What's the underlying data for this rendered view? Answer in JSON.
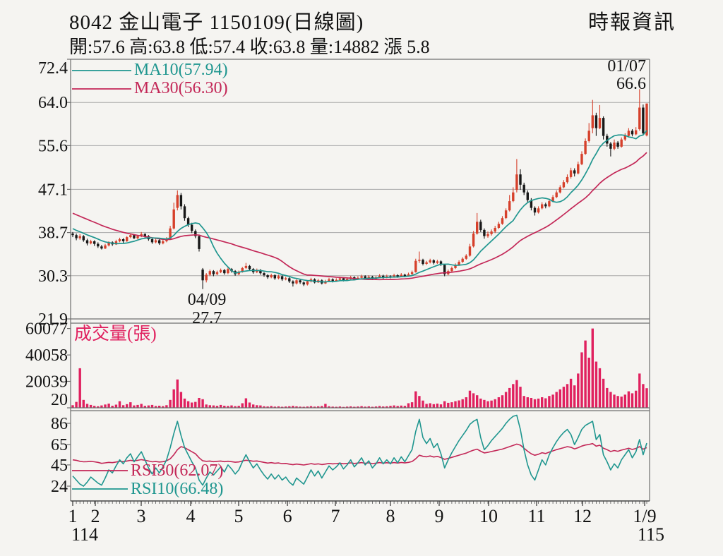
{
  "header": {
    "title": "8042 金山電子 1150109(日線圖)",
    "source": "時報資訊",
    "info": "開:57.6 高:63.8 低:57.4 收:63.8 量:14882 漲 5.8"
  },
  "colors": {
    "up": "#d6402b",
    "down": "#181818",
    "ma10": "#1f968f",
    "ma30": "#c32757",
    "volume": "#e0215f",
    "grid": "#a8a8a8",
    "axis": "#6f6f6f",
    "text": "#121212",
    "bg": "#f5f4f1"
  },
  "chart_data": {
    "type": "candlestick",
    "title": "8042 金山電子 1150109(日線圖)",
    "panels": [
      "price_with_ma",
      "volume",
      "rsi"
    ],
    "price_axis": {
      "min": 21.9,
      "max": 72.4,
      "ticks": [
        72.4,
        64.0,
        55.6,
        47.1,
        38.7,
        30.3,
        21.9
      ]
    },
    "volume_axis": {
      "max": 62000,
      "ticks": [
        60077,
        40058,
        20039,
        20
      ]
    },
    "rsi_axis": {
      "ticks": [
        86,
        65,
        45,
        24
      ]
    },
    "months": [
      {
        "label": "1",
        "f": 0.0
      },
      {
        "label": "2",
        "f": 0.0394
      },
      {
        "label": "3",
        "f": 0.1193
      },
      {
        "label": "4",
        "f": 0.2054
      },
      {
        "label": "5",
        "f": 0.2891
      },
      {
        "label": "6",
        "f": 0.374
      },
      {
        "label": "7",
        "f": 0.4576
      },
      {
        "label": "8",
        "f": 0.5535
      },
      {
        "label": "9",
        "f": 0.6384
      },
      {
        "label": "10",
        "f": 0.7245
      },
      {
        "label": "11",
        "f": 0.8081
      },
      {
        "label": "12",
        "f": 0.8881
      },
      {
        "label": "1/9",
        "f": 0.9963
      }
    ],
    "year_left": "114",
    "year_right": "115",
    "legend": {
      "ma10": "MA10(57.94)",
      "ma30": "MA30(56.30)",
      "volume_title": "成交量(張)",
      "rsi30": "RSI30(62.07)",
      "rsi10": "RSI10(66.48)"
    },
    "annotations": {
      "high": {
        "date": "01/07",
        "value": "66.6",
        "day": 157
      },
      "low": {
        "date": "04/09",
        "value": "27.7",
        "day": 36
      }
    },
    "pre_closes": [
      47.0,
      46.5,
      46.8,
      46.0,
      45.5,
      45.8,
      45.0,
      44.6,
      44.9,
      44.2,
      43.8,
      44.0,
      43.4,
      43.0,
      43.3,
      42.6,
      42.2,
      42.5,
      41.8,
      41.4,
      41.7,
      41.0,
      40.6,
      40.2,
      39.8,
      39.5,
      39.2,
      38.9,
      38.7,
      38.5
    ],
    "candles": [
      [
        38.5,
        38.8,
        37.8,
        38.2
      ],
      [
        38.2,
        38.5,
        37.2,
        37.6
      ],
      [
        37.6,
        38.4,
        37.3,
        38.0
      ],
      [
        38.0,
        38.2,
        36.9,
        37.2
      ],
      [
        37.2,
        37.5,
        36.2,
        36.6
      ],
      [
        36.6,
        37.3,
        36.4,
        37.0
      ],
      [
        37.0,
        37.2,
        36.1,
        36.5
      ],
      [
        36.5,
        36.8,
        35.7,
        36.0
      ],
      [
        36.0,
        36.3,
        35.4,
        35.6
      ],
      [
        35.6,
        36.5,
        35.5,
        36.2
      ],
      [
        36.2,
        37.0,
        36.0,
        36.8
      ],
      [
        36.8,
        37.0,
        36.1,
        36.4
      ],
      [
        36.4,
        37.3,
        36.3,
        37.0
      ],
      [
        37.0,
        37.7,
        36.8,
        37.4
      ],
      [
        37.4,
        37.6,
        36.7,
        37.0
      ],
      [
        37.0,
        38.0,
        36.9,
        37.8
      ],
      [
        37.8,
        38.5,
        37.6,
        38.2
      ],
      [
        38.2,
        38.4,
        37.4,
        37.6
      ],
      [
        37.6,
        38.2,
        37.4,
        38.0
      ],
      [
        38.0,
        38.8,
        37.8,
        38.4
      ],
      [
        38.4,
        38.6,
        37.7,
        38.0
      ],
      [
        38.0,
        38.2,
        37.1,
        37.4
      ],
      [
        37.4,
        37.6,
        36.5,
        36.8
      ],
      [
        36.8,
        37.5,
        36.6,
        37.2
      ],
      [
        37.2,
        37.4,
        36.3,
        36.6
      ],
      [
        36.6,
        37.3,
        36.4,
        37.0
      ],
      [
        37.0,
        37.8,
        36.8,
        37.5
      ],
      [
        37.5,
        40.0,
        37.4,
        39.5
      ],
      [
        39.5,
        44.5,
        39.3,
        43.2
      ],
      [
        43.5,
        46.9,
        43.0,
        46.0
      ],
      [
        46.0,
        46.4,
        43.2,
        43.8
      ],
      [
        43.8,
        44.2,
        41.0,
        41.5
      ],
      [
        41.5,
        41.8,
        39.8,
        40.2
      ],
      [
        40.2,
        40.6,
        38.6,
        39.0
      ],
      [
        39.0,
        39.3,
        37.6,
        38.0
      ],
      [
        38.0,
        38.2,
        35.0,
        35.5
      ],
      [
        31.5,
        31.8,
        27.7,
        29.4
      ],
      [
        29.4,
        30.8,
        29.0,
        30.5
      ],
      [
        30.5,
        31.5,
        30.2,
        31.2
      ],
      [
        31.2,
        31.4,
        30.2,
        30.6
      ],
      [
        30.6,
        31.3,
        30.4,
        31.0
      ],
      [
        31.0,
        31.7,
        30.8,
        31.4
      ],
      [
        31.4,
        31.6,
        30.5,
        30.8
      ],
      [
        30.8,
        31.9,
        30.6,
        31.6
      ],
      [
        31.6,
        31.8,
        30.9,
        31.2
      ],
      [
        31.2,
        31.4,
        30.3,
        30.6
      ],
      [
        30.6,
        31.3,
        30.4,
        31.0
      ],
      [
        31.0,
        32.0,
        30.9,
        31.8
      ],
      [
        31.8,
        32.8,
        31.6,
        32.2
      ],
      [
        32.2,
        32.4,
        31.3,
        31.6
      ],
      [
        31.6,
        31.8,
        30.7,
        31.0
      ],
      [
        31.0,
        31.7,
        30.8,
        31.4
      ],
      [
        31.4,
        31.6,
        30.5,
        30.8
      ],
      [
        30.8,
        31.0,
        30.1,
        30.4
      ],
      [
        30.4,
        30.6,
        29.7,
        30.0
      ],
      [
        30.0,
        30.7,
        29.8,
        30.4
      ],
      [
        30.4,
        30.6,
        29.5,
        29.8
      ],
      [
        29.8,
        30.5,
        29.6,
        30.2
      ],
      [
        30.2,
        30.4,
        29.3,
        29.6
      ],
      [
        29.6,
        30.1,
        29.4,
        29.8
      ],
      [
        29.8,
        30.0,
        28.9,
        29.2
      ],
      [
        29.2,
        29.4,
        28.2,
        28.8
      ],
      [
        28.8,
        29.6,
        28.6,
        29.4
      ],
      [
        29.4,
        29.6,
        28.7,
        29.0
      ],
      [
        29.0,
        29.2,
        28.3,
        28.6
      ],
      [
        28.6,
        29.4,
        28.4,
        29.2
      ],
      [
        29.2,
        29.9,
        29.0,
        29.6
      ],
      [
        29.6,
        29.8,
        28.8,
        29.0
      ],
      [
        29.0,
        29.7,
        28.9,
        29.4
      ],
      [
        29.4,
        29.6,
        28.6,
        28.8
      ],
      [
        28.8,
        29.5,
        28.7,
        29.2
      ],
      [
        29.2,
        29.9,
        29.1,
        29.6
      ],
      [
        29.6,
        29.8,
        29.0,
        29.3
      ],
      [
        29.3,
        29.8,
        29.1,
        29.5
      ],
      [
        29.5,
        30.1,
        29.3,
        29.8
      ],
      [
        29.8,
        30.0,
        29.2,
        29.4
      ],
      [
        29.4,
        30.0,
        29.3,
        29.7
      ],
      [
        29.7,
        30.3,
        29.5,
        30.0
      ],
      [
        30.0,
        30.2,
        29.4,
        29.6
      ],
      [
        29.6,
        30.2,
        29.5,
        29.9
      ],
      [
        29.9,
        30.5,
        29.7,
        30.2
      ],
      [
        30.2,
        30.4,
        29.6,
        29.8
      ],
      [
        29.8,
        30.4,
        29.7,
        30.1
      ],
      [
        30.1,
        30.3,
        29.5,
        29.7
      ],
      [
        29.7,
        30.3,
        29.6,
        30.0
      ],
      [
        30.0,
        30.6,
        29.9,
        30.3
      ],
      [
        30.3,
        30.5,
        29.7,
        29.9
      ],
      [
        29.9,
        30.5,
        29.8,
        30.2
      ],
      [
        30.2,
        30.4,
        29.8,
        30.0
      ],
      [
        30.0,
        30.7,
        29.9,
        30.4
      ],
      [
        30.4,
        30.6,
        29.9,
        30.1
      ],
      [
        30.1,
        30.8,
        30.0,
        30.5
      ],
      [
        30.5,
        30.7,
        30.0,
        30.2
      ],
      [
        30.2,
        30.9,
        30.1,
        30.6
      ],
      [
        30.6,
        31.3,
        30.5,
        31.0
      ],
      [
        31.0,
        33.6,
        30.9,
        33.2
      ],
      [
        33.2,
        35.0,
        32.8,
        33.4
      ],
      [
        33.4,
        33.6,
        32.3,
        32.6
      ],
      [
        32.6,
        33.2,
        32.4,
        32.9
      ],
      [
        32.9,
        33.6,
        32.7,
        33.3
      ],
      [
        33.3,
        33.5,
        32.5,
        32.8
      ],
      [
        32.8,
        33.4,
        32.6,
        33.1
      ],
      [
        33.1,
        33.3,
        32.2,
        32.5
      ],
      [
        32.4,
        32.6,
        30.2,
        30.6
      ],
      [
        30.6,
        31.5,
        30.4,
        31.2
      ],
      [
        31.2,
        32.1,
        31.0,
        31.8
      ],
      [
        31.8,
        32.7,
        31.6,
        32.4
      ],
      [
        32.4,
        33.3,
        32.2,
        33.0
      ],
      [
        33.0,
        33.9,
        32.8,
        33.6
      ],
      [
        33.6,
        34.5,
        33.4,
        34.2
      ],
      [
        34.2,
        36.5,
        34.0,
        36.0
      ],
      [
        36.0,
        39.0,
        35.8,
        38.5
      ],
      [
        38.5,
        42.5,
        38.3,
        40.8
      ],
      [
        40.8,
        41.2,
        38.8,
        39.2
      ],
      [
        39.2,
        39.5,
        37.5,
        38.0
      ],
      [
        38.0,
        38.9,
        37.7,
        38.4
      ],
      [
        38.4,
        39.3,
        38.1,
        38.9
      ],
      [
        38.9,
        40.0,
        38.6,
        39.6
      ],
      [
        39.6,
        40.8,
        39.4,
        40.4
      ],
      [
        40.4,
        41.9,
        40.2,
        41.5
      ],
      [
        41.5,
        43.4,
        41.3,
        43.0
      ],
      [
        43.0,
        46.0,
        42.8,
        44.8
      ],
      [
        44.8,
        47.5,
        44.6,
        46.5
      ],
      [
        47.0,
        53.0,
        46.5,
        50.0
      ],
      [
        50.0,
        51.0,
        47.0,
        48.0
      ],
      [
        48.0,
        48.4,
        46.0,
        46.5
      ],
      [
        46.5,
        46.9,
        44.5,
        45.0
      ],
      [
        45.0,
        45.4,
        43.0,
        43.5
      ],
      [
        43.5,
        43.8,
        42.0,
        42.6
      ],
      [
        42.6,
        43.8,
        42.4,
        43.4
      ],
      [
        43.4,
        44.6,
        43.2,
        44.2
      ],
      [
        44.2,
        44.5,
        43.4,
        43.8
      ],
      [
        43.8,
        45.2,
        43.6,
        44.8
      ],
      [
        44.8,
        46.0,
        44.6,
        45.6
      ],
      [
        45.6,
        46.9,
        45.4,
        46.5
      ],
      [
        46.5,
        47.9,
        46.3,
        47.5
      ],
      [
        47.5,
        48.9,
        47.3,
        48.5
      ],
      [
        48.5,
        50.0,
        48.2,
        49.5
      ],
      [
        49.5,
        51.3,
        49.2,
        50.8
      ],
      [
        50.8,
        51.2,
        49.6,
        50.2
      ],
      [
        50.2,
        52.5,
        50.0,
        52.0
      ],
      [
        52.0,
        54.5,
        51.8,
        54.0
      ],
      [
        54.0,
        57.0,
        53.8,
        56.5
      ],
      [
        56.5,
        60.0,
        56.2,
        58.5
      ],
      [
        59.0,
        64.5,
        58.0,
        61.5
      ],
      [
        61.5,
        62.0,
        57.5,
        59.0
      ],
      [
        59.0,
        63.5,
        58.8,
        61.0
      ],
      [
        61.0,
        61.3,
        56.8,
        57.5
      ],
      [
        57.5,
        57.9,
        55.4,
        56.0
      ],
      [
        56.0,
        56.3,
        53.5,
        55.0
      ],
      [
        55.0,
        56.8,
        54.7,
        56.2
      ],
      [
        56.2,
        56.5,
        55.0,
        55.4
      ],
      [
        55.4,
        57.2,
        55.2,
        56.8
      ],
      [
        56.8,
        58.0,
        56.5,
        57.5
      ],
      [
        57.5,
        59.0,
        57.3,
        58.5
      ],
      [
        58.5,
        58.8,
        57.4,
        57.8
      ],
      [
        57.8,
        59.2,
        57.6,
        58.6
      ],
      [
        58.8,
        66.6,
        58.5,
        63.0
      ],
      [
        63.0,
        63.6,
        57.6,
        58.0
      ],
      [
        57.6,
        63.8,
        57.4,
        63.8
      ]
    ],
    "volumes": [
      2000,
      4500,
      30000,
      6000,
      3000,
      2200,
      1500,
      1200,
      1800,
      2500,
      3200,
      1600,
      2400,
      5000,
      2000,
      2800,
      4200,
      1800,
      2200,
      3000,
      1500,
      1800,
      2200,
      1400,
      1600,
      1300,
      2000,
      6000,
      14000,
      21500,
      12000,
      7000,
      5000,
      4000,
      4500,
      7500,
      6500,
      2500,
      2000,
      1800,
      1500,
      2200,
      1600,
      1400,
      1800,
      1300,
      1500,
      3500,
      7200,
      4000,
      2500,
      2000,
      1800,
      1200,
      1000,
      1400,
      900,
      1100,
      800,
      1000,
      1200,
      1500,
      1100,
      900,
      800,
      1000,
      1300,
      900,
      1100,
      1400,
      3000,
      1200,
      900,
      800,
      1000,
      700,
      900,
      1100,
      800,
      1000,
      1300,
      900,
      1100,
      800,
      1000,
      1400,
      1000,
      1200,
      1500,
      1800,
      1400,
      1700,
      1500,
      3500,
      4200,
      12500,
      9000,
      5500,
      3000,
      3500,
      2800,
      3200,
      2600,
      5000,
      3800,
      4200,
      5000,
      5600,
      6500,
      8000,
      13000,
      11000,
      9500,
      7000,
      6000,
      5000,
      5500,
      6500,
      8000,
      9500,
      12000,
      15000,
      18000,
      21000,
      16000,
      9000,
      8000,
      7500,
      6500,
      7000,
      8000,
      7200,
      9000,
      10000,
      12000,
      14000,
      16000,
      18000,
      22000,
      17000,
      26000,
      42000,
      51000,
      38000,
      60077,
      35000,
      30000,
      22000,
      15000,
      12000,
      10000,
      9000,
      8500,
      10000,
      12500,
      11000,
      13000,
      26000,
      18000,
      14882
    ],
    "rsi10": [
      34,
      30,
      26,
      24,
      28,
      33,
      30,
      27,
      25,
      32,
      40,
      37,
      44,
      50,
      46,
      52,
      56,
      48,
      53,
      58,
      50,
      42,
      36,
      42,
      37,
      43,
      50,
      62,
      76,
      88,
      74,
      62,
      55,
      48,
      42,
      30,
      25,
      32,
      38,
      35,
      39,
      43,
      38,
      45,
      41,
      36,
      40,
      48,
      55,
      48,
      42,
      46,
      40,
      35,
      31,
      36,
      31,
      35,
      30,
      33,
      28,
      25,
      32,
      29,
      26,
      33,
      40,
      34,
      39,
      32,
      38,
      44,
      40,
      43,
      47,
      41,
      45,
      50,
      43,
      47,
      52,
      45,
      49,
      42,
      46,
      52,
      46,
      50,
      46,
      52,
      47,
      53,
      48,
      54,
      60,
      78,
      90,
      72,
      66,
      71,
      62,
      66,
      56,
      42,
      50,
      57,
      63,
      69,
      74,
      79,
      85,
      88,
      90,
      72,
      60,
      64,
      69,
      73,
      77,
      81,
      86,
      90,
      93,
      94,
      80,
      60,
      45,
      35,
      30,
      40,
      50,
      45,
      55,
      62,
      68,
      73,
      77,
      80,
      75,
      65,
      72,
      80,
      84,
      86,
      88,
      70,
      75,
      55,
      48,
      40,
      46,
      42,
      50,
      55,
      60,
      52,
      58,
      70,
      55,
      66.48
    ],
    "rsi30": [
      50,
      49.5,
      48.5,
      48,
      48.2,
      48.5,
      48,
      47.5,
      46.5,
      47,
      47.5,
      47.2,
      47.8,
      48.5,
      48.2,
      48.8,
      49.5,
      49,
      49.5,
      50.2,
      49.6,
      48.8,
      48,
      48.3,
      47.8,
      48.2,
      49,
      51,
      55,
      60,
      63,
      62,
      60,
      58,
      56,
      52,
      49,
      48.5,
      48.8,
      48.2,
      48.5,
      48.8,
      48.2,
      48.6,
      48.2,
      47.6,
      47.9,
      48.8,
      49.6,
      49.2,
      48.6,
      48.9,
      48.2,
      47.5,
      46.8,
      47.2,
      46.6,
      46.9,
      46.2,
      46.4,
      45.7,
      45.2,
      45.8,
      45.4,
      44.9,
      45.5,
      46.2,
      45.6,
      46,
      45.3,
      45.8,
      46.4,
      46,
      46.3,
      46.7,
      46.1,
      46.4,
      47,
      46.4,
      46.8,
      47.3,
      46.6,
      47,
      46.3,
      46.7,
      47.3,
      46.7,
      47.1,
      46.7,
      47.3,
      46.8,
      47.4,
      46.9,
      47.5,
      48.3,
      51,
      54.5,
      53.5,
      53,
      53.8,
      52.8,
      53.4,
      52.2,
      50.5,
      51.4,
      52.4,
      53.5,
      54.6,
      55.6,
      56.6,
      58.2,
      59.5,
      60.5,
      58.5,
      56.8,
      57.4,
      58.2,
      59,
      59.8,
      60.6,
      61.8,
      63,
      64.2,
      65.5,
      64.5,
      61.5,
      58.5,
      56,
      54.5,
      55.5,
      57,
      56.2,
      57.6,
      58.8,
      60,
      61,
      62,
      63,
      62.4,
      60.8,
      62,
      63.6,
      64.6,
      65.2,
      66,
      63.5,
      64.4,
      61.5,
      60,
      58.2,
      59.2,
      58.4,
      59.6,
      60.5,
      61.4,
      60.2,
      61.2,
      63,
      60.5,
      62.07
    ]
  }
}
